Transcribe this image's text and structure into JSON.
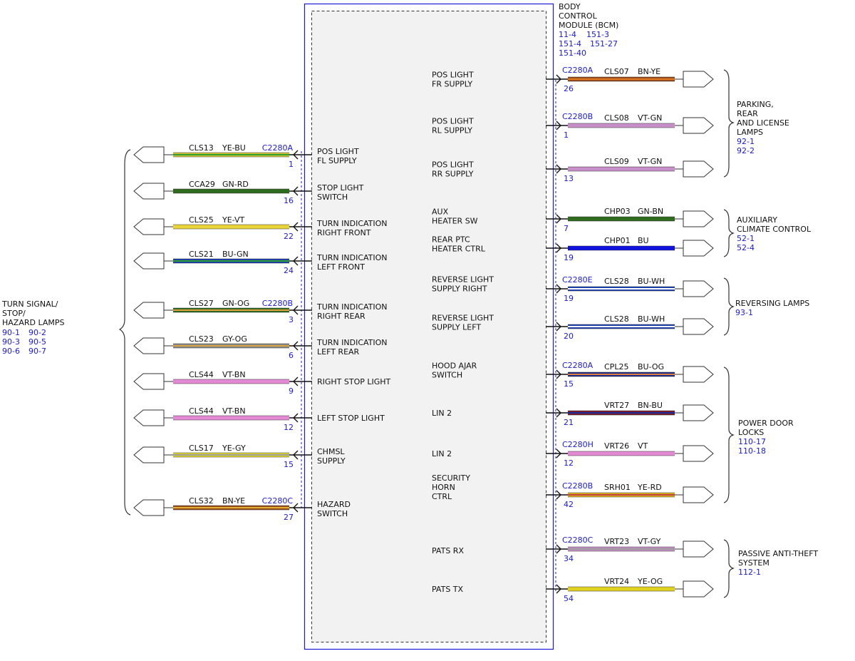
{
  "module": {
    "title_lines": [
      "BODY",
      "CONTROL",
      "MODULE (BCM)"
    ],
    "refs": [
      "11-4",
      "151-3",
      "151-4",
      "151-27",
      "151-40"
    ]
  },
  "left_group": {
    "title_lines": [
      "TURN SIGNAL/",
      "STOP/",
      "HAZARD LAMPS"
    ],
    "refs": [
      "90-1",
      "90-2",
      "90-3",
      "90-5",
      "90-6",
      "90-7"
    ]
  },
  "left_circuits": [
    {
      "circuit": "CLS13",
      "color_code": "YE-BU",
      "connector": "C2280A",
      "pin": "1",
      "function": [
        "POS LIGHT",
        "FL SUPPLY"
      ],
      "colors": [
        "#d4c43a",
        "#2e9e2e"
      ]
    },
    {
      "circuit": "CCA29",
      "color_code": "GN-RD",
      "connector": "",
      "pin": "16",
      "function": [
        "STOP LIGHT",
        "SWITCH"
      ],
      "colors": [
        "#2e6b1e",
        "#2e6b1e"
      ]
    },
    {
      "circuit": "CLS25",
      "color_code": "YE-VT",
      "connector": "",
      "pin": "22",
      "function": [
        "TURN INDICATION",
        "RIGHT FRONT"
      ],
      "colors": [
        "#e8d43a",
        "#e8d43a"
      ]
    },
    {
      "circuit": "CLS21",
      "color_code": "BU-GN",
      "connector": "",
      "pin": "24",
      "function": [
        "TURN INDICATION",
        "LEFT FRONT"
      ],
      "colors": [
        "#1a3fb0",
        "#2e9e2e"
      ]
    },
    {
      "circuit": "CLS27",
      "color_code": "GN-OG",
      "connector": "C2280B",
      "pin": "3",
      "function": [
        "TURN INDICATION",
        "RIGHT REAR"
      ],
      "colors": [
        "#2e6b1e",
        "#e0a040"
      ]
    },
    {
      "circuit": "CLS23",
      "color_code": "GY-OG",
      "connector": "",
      "pin": "6",
      "function": [
        "TURN INDICATION",
        "LEFT REAR"
      ],
      "colors": [
        "#8a8a8a",
        "#d4a040"
      ]
    },
    {
      "circuit": "CLS44",
      "color_code": "VT-BN",
      "connector": "",
      "pin": "9",
      "function": [
        "RIGHT STOP LIGHT"
      ],
      "colors": [
        "#e48ad4",
        "#e48ad4"
      ]
    },
    {
      "circuit": "CLS44",
      "color_code": "VT-BN",
      "connector": "",
      "pin": "12",
      "function": [
        "LEFT STOP LIGHT"
      ],
      "colors": [
        "#e48ad4",
        "#e48ad4"
      ]
    },
    {
      "circuit": "CLS17",
      "color_code": "YE-GY",
      "connector": "",
      "pin": "15",
      "function": [
        "CHMSL",
        "SUPPLY"
      ],
      "colors": [
        "#e0d830",
        "#9a9a9a"
      ]
    },
    {
      "circuit": "CLS32",
      "color_code": "BN-YE",
      "connector": "C2280C",
      "pin": "27",
      "function": [
        "HAZARD",
        "SWITCH"
      ],
      "colors": [
        "#9a4a1a",
        "#e0b030"
      ]
    }
  ],
  "right_circuits": [
    {
      "circuit": "CLS07",
      "color_code": "BN-YE",
      "connector": "C2280A",
      "pin": "26",
      "function": [
        "POS LIGHT",
        "FR SUPPLY"
      ],
      "colors": [
        "#9a4a1a",
        "#e07a20"
      ]
    },
    {
      "circuit": "CLS08",
      "color_code": "VT-GN",
      "connector": "C2280B",
      "pin": "1",
      "function": [
        "POS LIGHT",
        "RL SUPPLY"
      ],
      "colors": [
        "#c890c8",
        "#c890c8"
      ]
    },
    {
      "circuit": "CLS09",
      "color_code": "VT-GN",
      "connector": "",
      "pin": "13",
      "function": [
        "POS LIGHT",
        "RR SUPPLY"
      ],
      "colors": [
        "#c890c8",
        "#c890c8"
      ]
    },
    {
      "circuit": "CHP03",
      "color_code": "GN-BN",
      "connector": "",
      "pin": "7",
      "function": [
        "AUX",
        "HEATER SW"
      ],
      "colors": [
        "#2e6b1e",
        "#2e6b1e"
      ]
    },
    {
      "circuit": "CHP01",
      "color_code": "BU",
      "connector": "",
      "pin": "19",
      "function": [
        "REAR PTC",
        "HEATER CTRL"
      ],
      "colors": [
        "#1010e0",
        "#1010e0"
      ]
    },
    {
      "circuit": "CLS28",
      "color_code": "BU-WH",
      "connector": "C2280E",
      "pin": "19",
      "function": [
        "REVERSE LIGHT",
        "SUPPLY RIGHT"
      ],
      "colors": [
        "#1a3fb0",
        "#ffffff"
      ]
    },
    {
      "circuit": "CLS28",
      "color_code": "BU-WH",
      "connector": "",
      "pin": "20",
      "function": [
        "REVERSE LIGHT",
        "SUPPLY LEFT"
      ],
      "colors": [
        "#1a3fb0",
        "#ffffff"
      ]
    },
    {
      "circuit": "CPL25",
      "color_code": "BU-OG",
      "connector": "C2280A",
      "pin": "15",
      "function": [
        "HOOD AJAR",
        "SWITCH"
      ],
      "colors": [
        "#1a2a8a",
        "#e08040"
      ]
    },
    {
      "circuit": "VRT27",
      "color_code": "BN-BU",
      "connector": "",
      "pin": "21",
      "function": [
        "LIN 2"
      ],
      "colors": [
        "#7a1a2a",
        "#1a2a9a"
      ]
    },
    {
      "circuit": "VRT26",
      "color_code": "VT",
      "connector": "C2280H",
      "pin": "12",
      "function": [
        "LIN 2"
      ],
      "colors": [
        "#e48ad4",
        "#e48ad4"
      ]
    },
    {
      "circuit": "SRH01",
      "color_code": "YE-RD",
      "connector": "C2280B",
      "pin": "42",
      "function": [
        "SECURITY",
        "HORN",
        "CTRL"
      ],
      "colors": [
        "#e0b020",
        "#c04040"
      ]
    },
    {
      "circuit": "VRT23",
      "color_code": "VT-GY",
      "connector": "C2280C",
      "pin": "34",
      "function": [
        "PATS RX"
      ],
      "colors": [
        "#c890c8",
        "#9a9a9a"
      ]
    },
    {
      "circuit": "VRT24",
      "color_code": "YE-OG",
      "connector": "",
      "pin": "54",
      "function": [
        "PATS TX"
      ],
      "colors": [
        "#e0d020",
        "#e0d020"
      ]
    }
  ],
  "right_groups": [
    {
      "title_lines": [
        "PARKING,",
        "REAR",
        "AND LICENSE",
        "LAMPS"
      ],
      "refs": [
        "92-1",
        "92-2"
      ]
    },
    {
      "title_lines": [
        "AUXILIARY",
        "CLIMATE CONTROL"
      ],
      "refs": [
        "52-1",
        "52-4"
      ]
    },
    {
      "title_lines": [
        "REVERSING LAMPS"
      ],
      "refs": [
        "93-1"
      ]
    },
    {
      "title_lines": [
        "POWER DOOR",
        "LOCKS"
      ],
      "refs": [
        "110-17",
        "110-18"
      ]
    },
    {
      "title_lines": [
        "PASSIVE ANTI-THEFT",
        "SYSTEM"
      ],
      "refs": [
        "112-1"
      ]
    }
  ],
  "colors": {
    "box_border": "#1a1ad8",
    "box_fill": "#f2f2f2",
    "ref_text": "#1a1ad8"
  }
}
